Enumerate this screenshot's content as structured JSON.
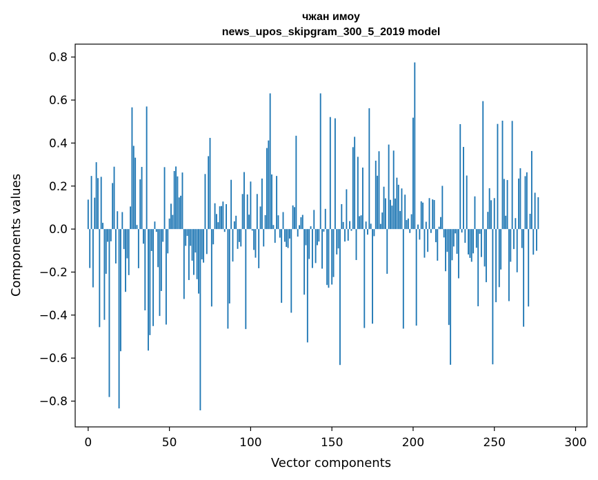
{
  "chart_data": {
    "type": "bar",
    "title": "чжан имоу",
    "subtitle": "news_upos_skipgram_300_5_2019 model",
    "xlabel": "Vector components",
    "ylabel": "Components values",
    "xlim": [
      -8,
      307
    ],
    "ylim": [
      -0.92,
      0.86
    ],
    "x_ticks": [
      0,
      50,
      100,
      150,
      200,
      250,
      300
    ],
    "x_tick_labels": [
      "0",
      "50",
      "100",
      "150",
      "200",
      "250",
      "300"
    ],
    "y_ticks": [
      -0.8,
      -0.6,
      -0.4,
      -0.2,
      0.0,
      0.2,
      0.4,
      0.6,
      0.8
    ],
    "y_tick_labels": [
      "−0.8",
      "−0.6",
      "−0.4",
      "−0.2",
      "0.0",
      "0.2",
      "0.4",
      "0.6",
      "0.8"
    ],
    "grid": false,
    "bar_color": "#1f77b4",
    "series": [
      {
        "values": [
          0.137,
          -0.181,
          0.247,
          -0.271,
          0.146,
          0.311,
          0.237,
          -0.456,
          0.243,
          0.029,
          -0.422,
          -0.208,
          -0.059,
          -0.781,
          -0.057,
          0.214,
          0.29,
          -0.16,
          0.083,
          -0.834,
          -0.568,
          0.079,
          -0.093,
          -0.292,
          -0.136,
          -0.214,
          0.105,
          0.566,
          0.387,
          0.332,
          0.019,
          -0.182,
          0.231,
          0.289,
          -0.068,
          -0.378,
          0.57,
          -0.565,
          -0.493,
          -0.102,
          -0.451,
          0.035,
          -0.013,
          -0.177,
          -0.404,
          -0.288,
          -0.059,
          0.288,
          -0.444,
          -0.113,
          0.049,
          0.118,
          0.066,
          0.27,
          0.291,
          0.245,
          0.147,
          0.155,
          0.263,
          -0.325,
          -0.078,
          -0.032,
          -0.237,
          -0.078,
          -0.147,
          -0.213,
          -0.109,
          -0.233,
          -0.3,
          -0.843,
          -0.141,
          -0.156,
          0.256,
          -0.116,
          0.339,
          0.424,
          -0.36,
          -0.071,
          0.12,
          0.07,
          0.032,
          0.106,
          0.107,
          0.128,
          -0.013,
          0.116,
          -0.463,
          -0.346,
          0.229,
          -0.151,
          0.036,
          0.062,
          -0.092,
          -0.06,
          -0.081,
          0.163,
          0.265,
          -0.465,
          0.161,
          0.067,
          0.221,
          -0.007,
          -0.097,
          -0.133,
          0.163,
          -0.182,
          0.105,
          0.235,
          -0.081,
          0.065,
          0.377,
          0.412,
          0.631,
          0.254,
          0.019,
          -0.064,
          0.247,
          0.064,
          -0.04,
          -0.343,
          0.079,
          -0.059,
          -0.083,
          -0.088,
          -0.044,
          -0.389,
          0.11,
          0.102,
          0.434,
          -0.035,
          0.018,
          0.055,
          0.066,
          -0.305,
          -0.075,
          -0.527,
          -0.139,
          0.013,
          -0.181,
          0.089,
          -0.158,
          -0.075,
          -0.058,
          0.631,
          -0.184,
          -0.012,
          0.094,
          -0.26,
          -0.273,
          0.521,
          -0.258,
          -0.223,
          0.515,
          -0.118,
          -0.09,
          -0.632,
          0.116,
          0.033,
          -0.058,
          0.185,
          -0.054,
          0.037,
          -0.008,
          0.381,
          0.429,
          -0.144,
          0.336,
          0.06,
          0.064,
          0.286,
          -0.46,
          0.035,
          -0.026,
          0.562,
          0.025,
          -0.44,
          -0.033,
          0.318,
          0.248,
          0.362,
          0.024,
          0.077,
          0.197,
          0.143,
          -0.208,
          0.393,
          0.136,
          0.109,
          0.365,
          0.142,
          0.239,
          0.206,
          0.084,
          0.189,
          -0.463,
          0.16,
          0.042,
          0.049,
          -0.018,
          0.069,
          0.518,
          0.775,
          -0.449,
          0.021,
          -0.049,
          0.129,
          0.123,
          -0.133,
          0.034,
          -0.106,
          0.144,
          -0.018,
          0.138,
          0.135,
          -0.061,
          -0.147,
          0.011,
          0.056,
          0.201,
          -0.039,
          -0.196,
          -0.106,
          -0.446,
          -0.631,
          -0.145,
          -0.081,
          -0.02,
          -0.115,
          -0.229,
          0.488,
          -0.016,
          0.382,
          -0.064,
          0.249,
          -0.118,
          -0.134,
          -0.152,
          -0.113,
          0.152,
          -0.087,
          -0.359,
          -0.022,
          -0.13,
          0.595,
          -0.174,
          -0.247,
          0.08,
          0.19,
          0.134,
          -0.629,
          0.144,
          -0.34,
          0.489,
          -0.27,
          -0.188,
          0.504,
          0.233,
          0.062,
          0.228,
          -0.335,
          -0.152,
          0.503,
          -0.093,
          0.051,
          -0.201,
          0.235,
          0.283,
          -0.088,
          -0.454,
          0.246,
          0.264,
          -0.36,
          0.071,
          0.363,
          -0.119,
          0.169,
          -0.101,
          0.148
        ]
      }
    ]
  }
}
